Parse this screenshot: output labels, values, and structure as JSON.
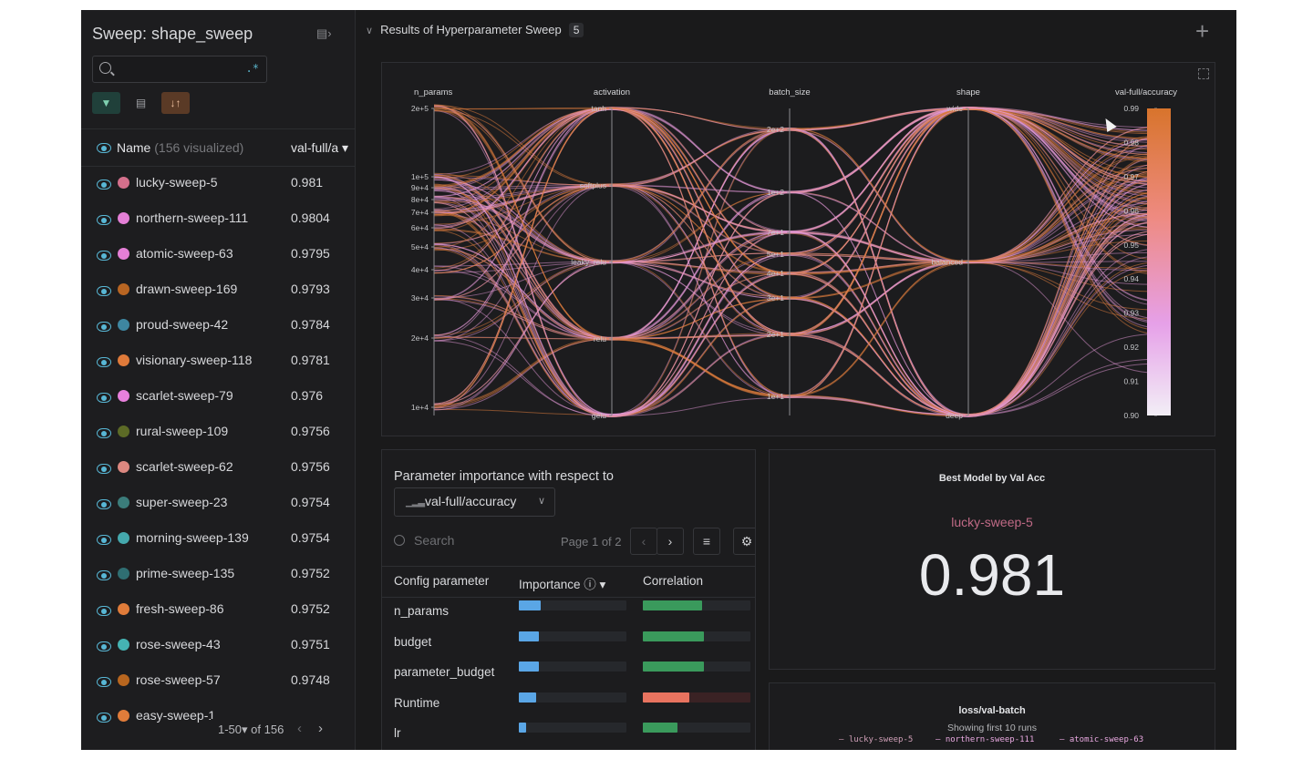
{
  "sidebar": {
    "title": "Sweep: shape_sweep",
    "search": {
      "value": "",
      "placeholder": "",
      "regex_label": ".*"
    },
    "toolbar": {
      "filter_icon": "filter-icon",
      "group_icon": "table-icon",
      "sort_icon": "sort-icon"
    },
    "header": {
      "name_label": "Name",
      "visualized": "(156 visualized)",
      "metric_label": "val-full/a ▾"
    },
    "rows": [
      {
        "name": "lucky-sweep-5",
        "value": "0.981",
        "color": "#d4708c"
      },
      {
        "name": "northern-sweep-111",
        "value": "0.9804",
        "color": "#e47fd6"
      },
      {
        "name": "atomic-sweep-63",
        "value": "0.9795",
        "color": "#e47fd6"
      },
      {
        "name": "drawn-sweep-169",
        "value": "0.9793",
        "color": "#b86522"
      },
      {
        "name": "proud-sweep-42",
        "value": "0.9784",
        "color": "#3e86a1"
      },
      {
        "name": "visionary-sweep-118",
        "value": "0.9781",
        "color": "#df7a3a"
      },
      {
        "name": "scarlet-sweep-79",
        "value": "0.976",
        "color": "#e880dc"
      },
      {
        "name": "rural-sweep-109",
        "value": "0.9756",
        "color": "#5c6a26"
      },
      {
        "name": "scarlet-sweep-62",
        "value": "0.9756",
        "color": "#dc8880"
      },
      {
        "name": "super-sweep-23",
        "value": "0.9754",
        "color": "#3b7c7a"
      },
      {
        "name": "morning-sweep-139",
        "value": "0.9754",
        "color": "#45a9ad"
      },
      {
        "name": "prime-sweep-135",
        "value": "0.9752",
        "color": "#2f6e72"
      },
      {
        "name": "fresh-sweep-86",
        "value": "0.9752",
        "color": "#e07c3a"
      },
      {
        "name": "rose-sweep-43",
        "value": "0.9751",
        "color": "#45b3b3"
      },
      {
        "name": "rose-sweep-57",
        "value": "0.9748",
        "color": "#b8661f"
      },
      {
        "name": "easy-sweep-1",
        "value": "",
        "color": "#e07c3a"
      }
    ],
    "pager": {
      "text": "1-50▾ of 156",
      "prev": "‹",
      "next": "›"
    }
  },
  "section": {
    "title": "Results of Hyperparameter Sweep",
    "count": "5",
    "add": "+"
  },
  "parallel": {
    "axes": [
      {
        "title": "n_params",
        "ticks": [
          "2e+5",
          "1e+5",
          "9e+4",
          "8e+4",
          "7e+4",
          "6e+4",
          "5e+4",
          "4e+4",
          "3e+4",
          "2e+4",
          "1e+4"
        ]
      },
      {
        "title": "activation",
        "ticks": [
          "tanh",
          "softplus",
          "leaky_relu",
          "relu",
          "gelu"
        ]
      },
      {
        "title": "batch_size",
        "ticks": [
          "2e+2",
          "1e+2",
          "7e+1",
          "5e+1",
          "4e+1",
          "3e+1",
          "2e+1",
          "1e+1"
        ]
      },
      {
        "title": "shape",
        "ticks": [
          "wide",
          "balanced",
          "deep"
        ]
      },
      {
        "title": "val-full/accuracy",
        "ticks": [
          "0.99",
          "0.98",
          "0.97",
          "0.96",
          "0.95",
          "0.94",
          "0.93",
          "0.92",
          "0.91",
          "0.90"
        ]
      }
    ]
  },
  "importance": {
    "title": "Parameter importance with respect to",
    "metric": "val-full/accuracy",
    "search_placeholder": "Search",
    "page": "Page 1 of 2",
    "columns": {
      "param": "Config parameter",
      "importance": "Importance ⓘ ▾",
      "correlation": "Correlation"
    },
    "rows": [
      {
        "name": "n_params",
        "importance": 0.2,
        "correlation": 0.55,
        "corr_sign": "pos"
      },
      {
        "name": "budget",
        "importance": 0.19,
        "correlation": 0.57,
        "corr_sign": "pos"
      },
      {
        "name": "parameter_budget",
        "importance": 0.19,
        "correlation": 0.57,
        "corr_sign": "pos"
      },
      {
        "name": "Runtime",
        "importance": 0.16,
        "correlation": 0.43,
        "corr_sign": "neg"
      },
      {
        "name": "lr",
        "importance": 0.07,
        "correlation": 0.32,
        "corr_sign": "pos"
      }
    ]
  },
  "best_model": {
    "title": "Best Model by Val Acc",
    "run": "lucky-sweep-5",
    "value": "0.981"
  },
  "loss_panel": {
    "title": "loss/val-batch",
    "subtitle": "Showing first 10 runs",
    "legend": [
      "lucky-sweep-5",
      "northern-sweep-111",
      "atomic-sweep-63"
    ]
  },
  "colors": {
    "accent_orange": "#d57a3a",
    "accent_pink": "#e68ad8",
    "importance_blue": "#5aa6e6",
    "corr_green": "#3a9a5c",
    "corr_red": "#e8735f"
  }
}
